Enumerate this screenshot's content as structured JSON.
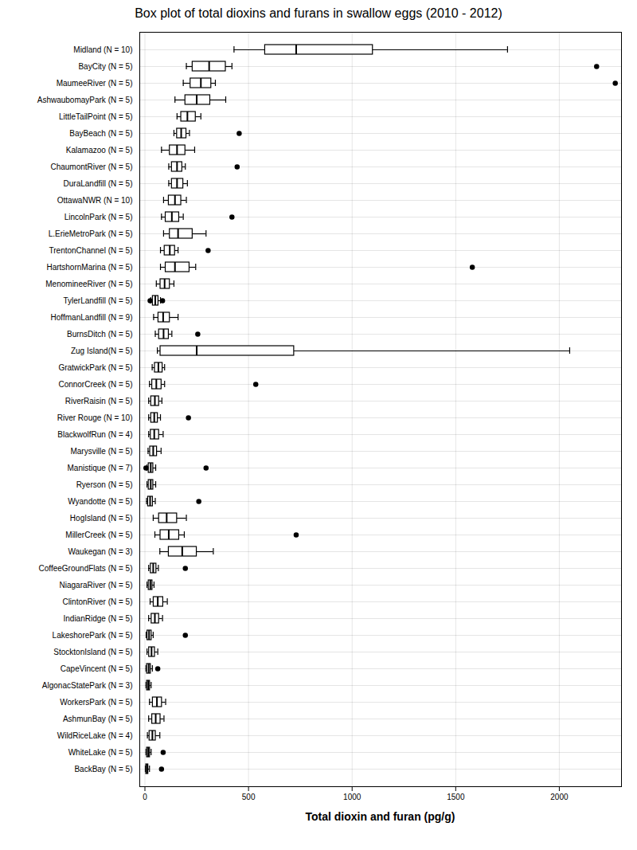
{
  "chart_data": {
    "type": "box",
    "orientation": "horizontal",
    "title": "Box plot of total dioxins and furans in swallow eggs (2010 - 2012)",
    "xlabel": "Total dioxin and furan (pg/g)",
    "categories": [
      "Midland (N = 10)",
      "BayCity (N = 5)",
      "MaumeeRiver (N = 5)",
      "AshwaubomayPark (N = 5)",
      "LittleTailPoint (N = 5)",
      "BayBeach (N = 5)",
      "Kalamazoo (N = 5)",
      "ChaumontRiver (N = 5)",
      "DuraLandfill (N = 5)",
      "OttawaNWR (N = 10)",
      "LincolnPark (N = 5)",
      "L.ErieMetroPark (N = 5)",
      "TrentonChannel (N = 5)",
      "HartshornMarina (N = 5)",
      "MenomineeRiver (N = 5)",
      "TylerLandfill (N = 5)",
      "HoffmanLandfill (N = 9)",
      "BurnsDitch (N = 5)",
      "Zug Island(N = 5)",
      "GratwickPark (N = 5)",
      "ConnorCreek (N = 5)",
      "RiverRaisin (N = 5)",
      "River Rouge (N = 10)",
      "BlackwolfRun (N = 4)",
      "Marysville (N = 5)",
      "Manistique (N = 7)",
      "Ryerson (N = 5)",
      "Wyandotte (N = 5)",
      "HogIsland (N = 5)",
      "MillerCreek (N = 5)",
      "Waukegan (N = 3)",
      "CoffeeGroundFlats (N = 5)",
      "NiagaraRiver (N = 5)",
      "ClintonRiver (N = 5)",
      "IndianRidge (N = 5)",
      "LakeshorePark (N = 5)",
      "StocktonIsland (N = 5)",
      "CapeVincent (N = 5)",
      "AlgonacStatePark (N = 3)",
      "WorkersPark (N = 5)",
      "AshmunBay (N = 5)",
      "WildRiceLake (N = 4)",
      "WhiteLake (N = 5)",
      "BackBay (N = 5)"
    ],
    "q1": [
      580,
      230,
      220,
      195,
      175,
      155,
      120,
      130,
      130,
      115,
      100,
      120,
      95,
      100,
      75,
      38,
      65,
      68,
      75,
      48,
      35,
      30,
      30,
      28,
      25,
      18,
      18,
      15,
      68,
      75,
      115,
      28,
      18,
      42,
      32,
      12,
      20,
      10,
      10,
      38,
      35,
      22,
      10,
      6
    ],
    "median": [
      730,
      310,
      270,
      250,
      205,
      175,
      155,
      155,
      155,
      145,
      130,
      160,
      120,
      145,
      95,
      50,
      88,
      90,
      250,
      65,
      55,
      48,
      45,
      45,
      40,
      28,
      28,
      25,
      105,
      115,
      180,
      40,
      26,
      62,
      48,
      20,
      32,
      18,
      16,
      58,
      52,
      36,
      16,
      10
    ],
    "q3": [
      1100,
      390,
      320,
      315,
      245,
      200,
      195,
      180,
      185,
      175,
      165,
      230,
      145,
      215,
      120,
      65,
      120,
      115,
      720,
      85,
      80,
      68,
      62,
      68,
      58,
      40,
      40,
      38,
      155,
      165,
      250,
      55,
      36,
      88,
      68,
      32,
      48,
      28,
      24,
      82,
      75,
      52,
      24,
      16
    ],
    "whisker_low": [
      430,
      200,
      185,
      145,
      155,
      140,
      80,
      115,
      115,
      90,
      80,
      90,
      75,
      75,
      55,
      28,
      42,
      50,
      60,
      35,
      22,
      18,
      18,
      18,
      15,
      10,
      10,
      8,
      40,
      48,
      72,
      18,
      10,
      25,
      18,
      6,
      10,
      5,
      5,
      22,
      18,
      12,
      5,
      2
    ],
    "whisker_high": [
      1750,
      420,
      340,
      390,
      270,
      215,
      240,
      195,
      205,
      200,
      185,
      295,
      160,
      245,
      140,
      75,
      160,
      130,
      2050,
      95,
      95,
      82,
      75,
      88,
      78,
      52,
      52,
      50,
      200,
      190,
      330,
      65,
      44,
      108,
      85,
      40,
      62,
      36,
      30,
      100,
      92,
      72,
      30,
      22
    ],
    "outliers": [
      [],
      [
        2180
      ],
      [
        2270
      ],
      [],
      [],
      [
        455
      ],
      [],
      [
        445
      ],
      [],
      [],
      [
        420
      ],
      [],
      [
        305
      ],
      [
        1580
      ],
      [],
      [
        25,
        85
      ],
      [],
      [
        255
      ],
      [],
      [],
      [
        535
      ],
      [],
      [
        210
      ],
      [],
      [],
      [
        5,
        295
      ],
      [],
      [
        260
      ],
      [],
      [
        730
      ],
      [],
      [
        195
      ],
      [],
      [],
      [],
      [
        195
      ],
      [],
      [
        62
      ],
      [],
      [],
      [],
      [],
      [
        88
      ],
      [
        80
      ]
    ],
    "xlim": [
      -25,
      2300
    ],
    "xticks": [
      0,
      500,
      1000,
      1500,
      2000
    ],
    "grid": true,
    "color": "black"
  }
}
